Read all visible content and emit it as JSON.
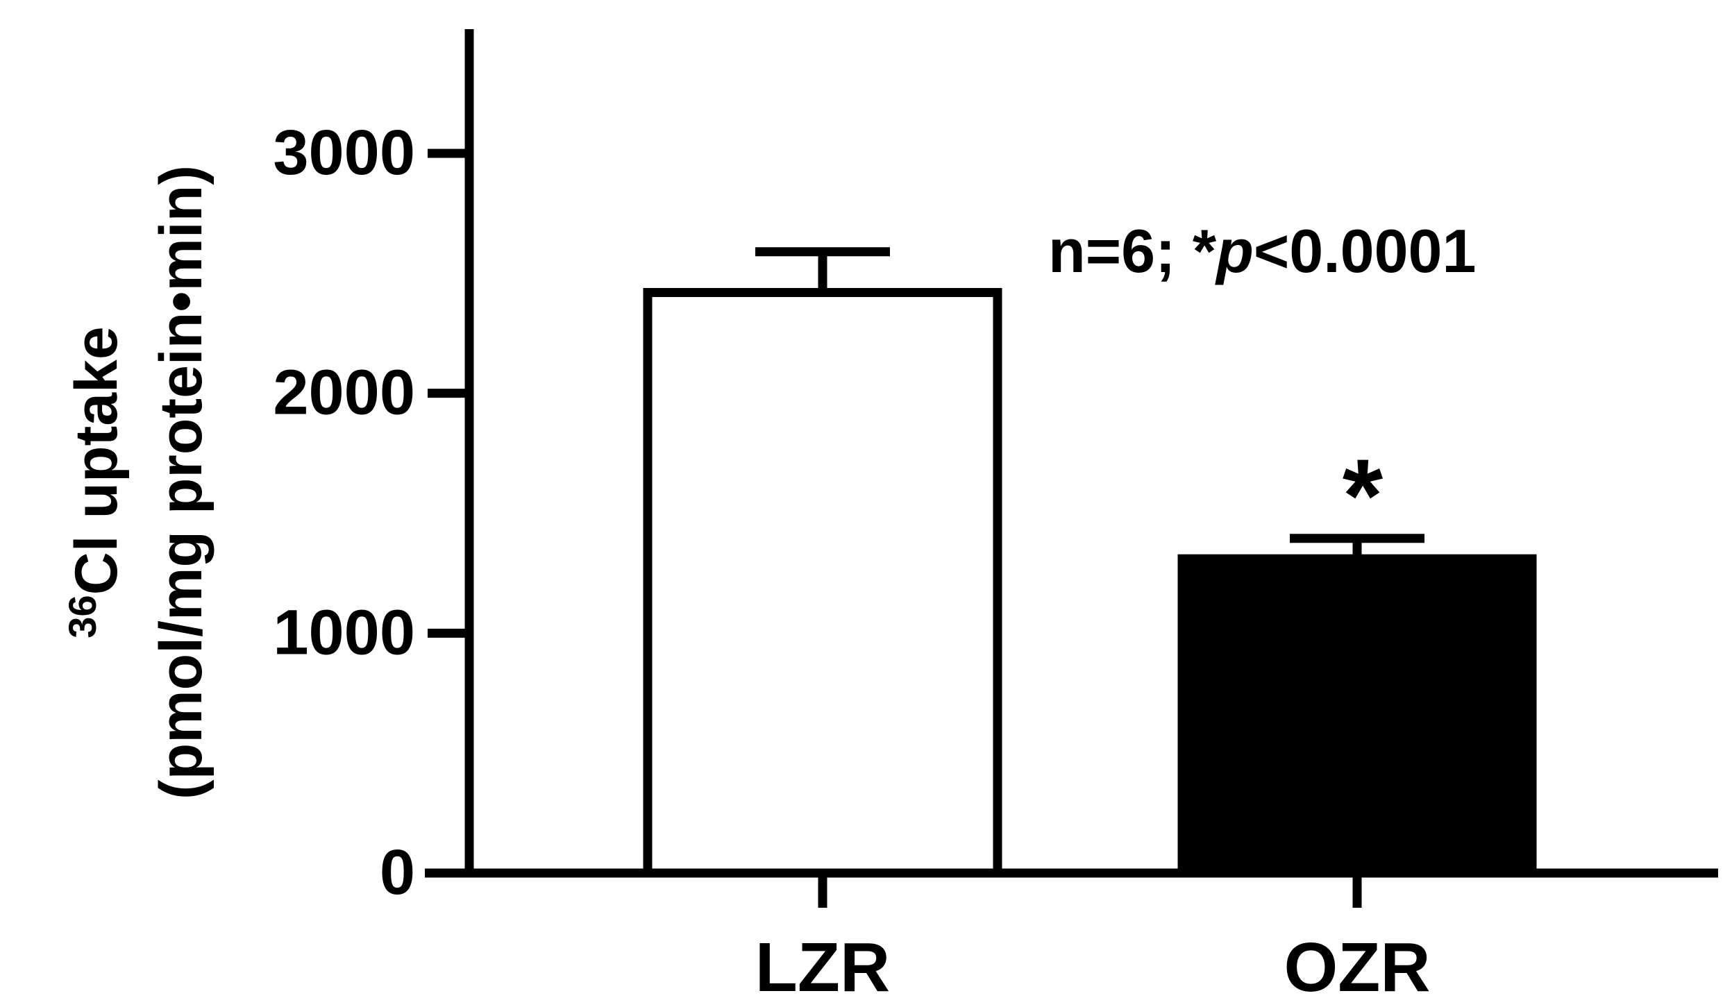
{
  "chart_data": {
    "type": "bar",
    "categories": [
      "LZR",
      "OZR"
    ],
    "values": [
      2420,
      1310
    ],
    "error_bars": [
      170,
      85
    ],
    "bar_fills": [
      "#ffffff",
      "#000000"
    ],
    "significance_marks": [
      "",
      "*"
    ],
    "ylabel": {
      "superscript": "36",
      "line1": "Cl uptake",
      "line2": "(pmol/mg protein•min)"
    },
    "yticks": [
      "0",
      "1000",
      "2000",
      "3000"
    ],
    "ylim": [
      0,
      3500
    ],
    "annotation": {
      "prefix": "n=6; *",
      "italic": "p",
      "suffix": "<0.0001"
    },
    "grid": false,
    "legend": "none",
    "colors": {
      "axis": "#000000",
      "bar_stroke": "#000000"
    }
  }
}
